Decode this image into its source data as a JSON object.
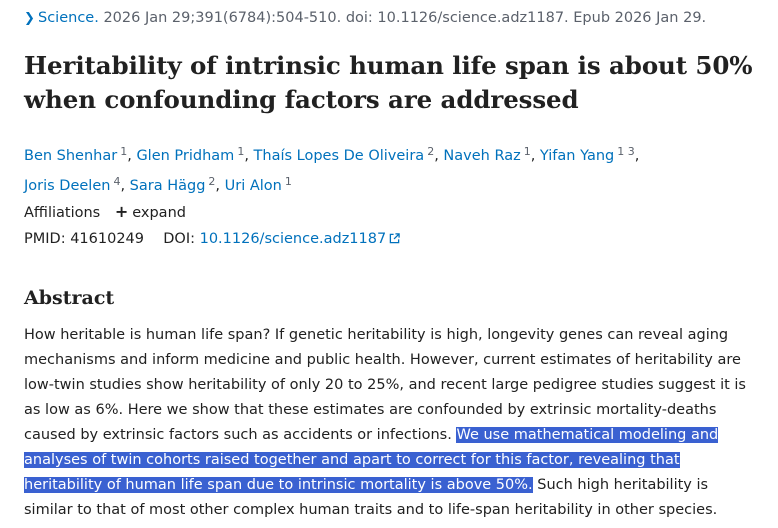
{
  "citation": {
    "journal": "Science.",
    "details": "2026 Jan 29;391(6784):504-510. doi: 10.1126/science.adz1187. Epub 2026 Jan 29."
  },
  "title": "Heritability of intrinsic human life span is about 50% when confounding factors are addressed",
  "authors": [
    {
      "name": "Ben Shenhar",
      "aff": "1"
    },
    {
      "name": "Glen Pridham",
      "aff": "1"
    },
    {
      "name": "Thaís Lopes De Oliveira",
      "aff": "2"
    },
    {
      "name": "Naveh Raz",
      "aff": "1"
    },
    {
      "name": "Yifan Yang",
      "aff": "1 3"
    },
    {
      "name": "Joris Deelen",
      "aff": "4"
    },
    {
      "name": "Sara Hägg",
      "aff": "2"
    },
    {
      "name": "Uri Alon",
      "aff": "1"
    }
  ],
  "affiliations": {
    "label": "Affiliations",
    "expand_label": "expand"
  },
  "ids": {
    "pmid_label": "PMID:",
    "pmid": "41610249",
    "doi_label": "DOI:",
    "doi": "10.1126/science.adz1187"
  },
  "abstract": {
    "heading": "Abstract",
    "text_before": "How heritable is human life span? If genetic heritability is high, longevity genes can reveal aging mechanisms and inform medicine and public health. However, current estimates of heritability are low-twin studies show heritability of only 20 to 25%, and recent large pedigree studies suggest it is as low as 6%. Here we show that these estimates are confounded by extrinsic mortality-deaths caused by extrinsic factors such as accidents or infections. ",
    "text_highlighted": "We use mathematical modeling and analyses of twin cohorts raised together and apart to correct for this factor, revealing that heritability of human life span due to intrinsic mortality is above 50%.",
    "text_after": " Such high heritability is similar to that of most other complex human traits and to life-span heritability in other species."
  },
  "colors": {
    "link": "#0071bc",
    "highlight": "#3a61d1",
    "text": "#212121",
    "muted": "#5b616b"
  }
}
